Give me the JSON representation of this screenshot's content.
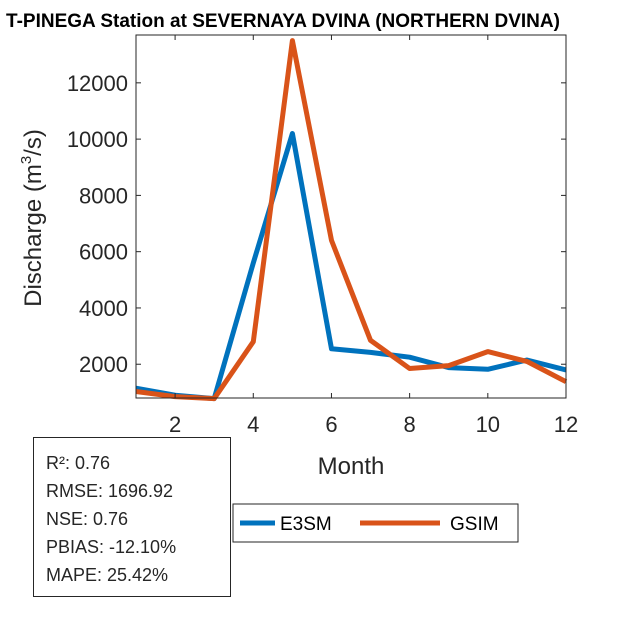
{
  "chart_data": {
    "type": "line",
    "title": "T-PINEGA  Station at  SEVERNAYA DVINA (NORTHERN DVINA)",
    "xlabel": "Month",
    "ylabel_main": "Discharge (m",
    "ylabel_sup": "3",
    "ylabel_end": "/s)",
    "xlim": [
      1,
      12
    ],
    "ylim": [
      800,
      13700
    ],
    "xticks": [
      2,
      4,
      6,
      8,
      10,
      12
    ],
    "yticks": [
      2000,
      4000,
      6000,
      8000,
      10000,
      12000
    ],
    "x": [
      1,
      2,
      3,
      4,
      5,
      6,
      7,
      8,
      9,
      10,
      11,
      12
    ],
    "series": [
      {
        "name": "E3SM",
        "color": "#0072BD",
        "values": [
          1150,
          900,
          780,
          5600,
          10200,
          2550,
          2420,
          2250,
          1880,
          1820,
          2150,
          1800
        ]
      },
      {
        "name": "GSIM",
        "color": "#D95319",
        "values": [
          1030,
          850,
          780,
          2800,
          13500,
          6400,
          2850,
          1850,
          1950,
          2450,
          2100,
          1380
        ]
      }
    ]
  },
  "stats": {
    "r2": "R²: 0.76",
    "rmse": "RMSE: 1696.92",
    "nse": "NSE: 0.76",
    "pbias": "PBIAS: -12.10%",
    "mape": "MAPE: 25.42%"
  }
}
